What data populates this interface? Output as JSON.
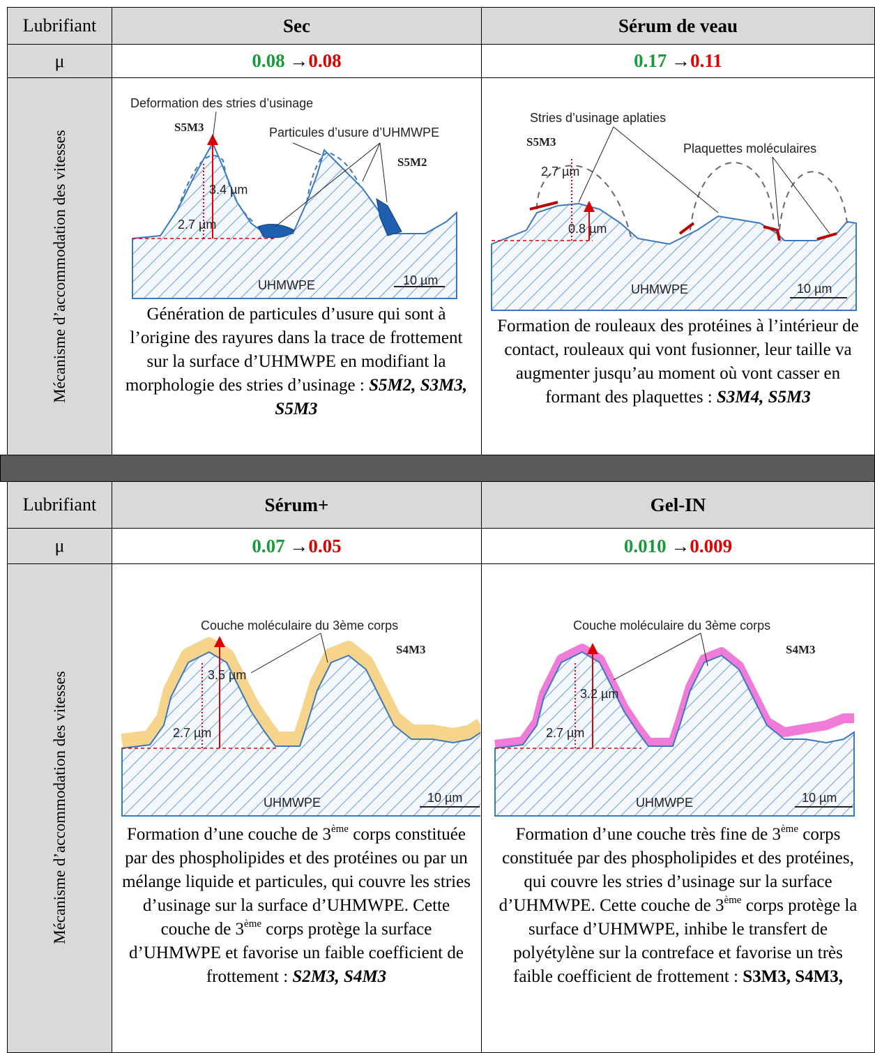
{
  "blocks": [
    {
      "header": {
        "label": "Lubrifiant",
        "columns": [
          "Sec",
          "Sérum de veau"
        ]
      },
      "mu": {
        "label": "μ",
        "values": [
          {
            "from": "0.08",
            "arrow": "→",
            "to": "0.08"
          },
          {
            "from": "0.17",
            "arrow": "→",
            "to": "0.11"
          }
        ]
      },
      "mechanism": {
        "label": "Mécanisme d’accommodation des vitesses",
        "cells": [
          {
            "diagram": {
              "callouts": [
                "Deformation des stries d’usinage",
                "Particules d’usure d’UHMWPE"
              ],
              "samples": [
                "S5M3",
                "S5M2"
              ],
              "heights": [
                "3.4 µm",
                "2.7 µm"
              ],
              "material": "UHMWPE",
              "scale": "10 µm"
            },
            "description": [
              {
                "text": "Génération de particules d’usure qui sont à l’origine des rayures dans la trace de frottement sur la surface d’UHMWPE en modifiant la morphologie des stries d’usinage : "
              },
              {
                "text": "S5M2, S3M3, S5M3",
                "style": "bold-italic"
              }
            ]
          },
          {
            "diagram": {
              "callouts": [
                "Stries d’usinage aplaties",
                "Plaquettes moléculaires"
              ],
              "samples": [
                "S5M3"
              ],
              "heights": [
                "2.7 µm",
                "0.8 µm"
              ],
              "material": "UHMWPE",
              "scale": "10 µm"
            },
            "description": [
              {
                "text": "Formation de rouleaux des protéines à l’intérieur de contact, rouleaux qui vont fusionner, leur taille va augmenter jusqu’au moment où vont casser en formant des plaquettes : "
              },
              {
                "text": "S3M4, S5M3",
                "style": "bold-italic"
              }
            ]
          }
        ]
      }
    },
    {
      "header": {
        "label": "Lubrifiant",
        "columns": [
          "Sérum+",
          "Gel-IN"
        ]
      },
      "mu": {
        "label": "μ",
        "values": [
          {
            "from": "0.07",
            "arrow": "→",
            "to": "0.05"
          },
          {
            "from": "0.010",
            "arrow": "→",
            "to": "0.009"
          }
        ]
      },
      "mechanism": {
        "label": "Mécanisme d’accommodation des vitesses",
        "cells": [
          {
            "diagram": {
              "callouts": [
                "Couche moléculaire du 3ème corps"
              ],
              "samples": [
                "S4M3"
              ],
              "heights": [
                "3.5 µm",
                "2.7 µm"
              ],
              "material": "UHMWPE",
              "scale": "10 µm"
            },
            "description": [
              {
                "text": "Formation d’une couche de 3"
              },
              {
                "text": "ème",
                "style": "sup"
              },
              {
                "text": " corps constituée par des phospholipides et des protéines ou par un mélange liquide et particules, qui couvre les stries d’usinage sur la surface d’UHMWPE. Cette couche de 3"
              },
              {
                "text": "ème",
                "style": "sup"
              },
              {
                "text": " corps protège la surface d’UHMWPE et favorise un faible coefficient de frottement : "
              },
              {
                "text": "S2M3, S4M3",
                "style": "bold-italic"
              }
            ]
          },
          {
            "diagram": {
              "callouts": [
                "Couche moléculaire du 3ème corps"
              ],
              "samples": [
                "S4M3"
              ],
              "heights": [
                "3.2 µm",
                "2.7 µm"
              ],
              "material": "UHMWPE",
              "scale": "10 µm"
            },
            "description": [
              {
                "text": "Formation d’une couche très fine de 3"
              },
              {
                "text": "ème",
                "style": "sup"
              },
              {
                "text": " corps constituée par des phospholipides et des protéines, qui couvre les stries d’usinage sur la surface d’UHMWPE. Cette couche de 3"
              },
              {
                "text": "ème",
                "style": "sup"
              },
              {
                "text": " corps protège la surface d’UHMWPE, inhibe le transfert de polyétylène sur la contreface et favorise un très faible coefficient de frottement : "
              },
              {
                "text": "S3M3, S4M3,",
                "style": "bold"
              }
            ]
          }
        ]
      }
    }
  ]
}
